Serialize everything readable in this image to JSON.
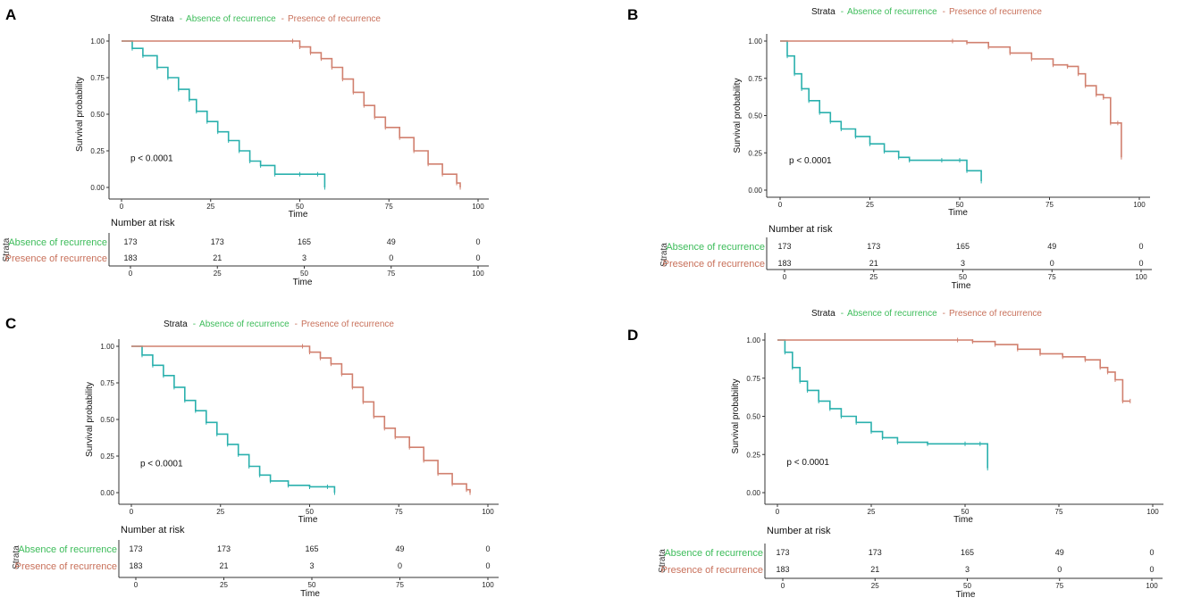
{
  "colors": {
    "absence": "#2ab0ad",
    "presence": "#d1806f",
    "absence_text": "#3dbc5a",
    "presence_text": "#c8705a",
    "axis": "#333333"
  },
  "legend": {
    "title": "Strata",
    "absence": "Absence of recurrence",
    "presence": "Presence of recurrence"
  },
  "risk_table": {
    "title": "Number at risk",
    "strata_label": "Strata",
    "rows": [
      {
        "label": "Absence of recurrence",
        "counts": [
          "173",
          "173",
          "165",
          "49",
          "0"
        ]
      },
      {
        "label": "Presence of recurrence",
        "counts": [
          "183",
          "21",
          "3",
          "0",
          "0"
        ]
      }
    ],
    "time_ticks": [
      "0",
      "25",
      "50",
      "75",
      "100"
    ],
    "xlabel": "Time"
  },
  "chart_data": [
    {
      "panel": "A",
      "type": "line",
      "title": "",
      "xlabel": "Time",
      "ylabel": "Survival probability",
      "xlim": [
        0,
        100
      ],
      "ylim": [
        0,
        1
      ],
      "x_ticks": [
        "0",
        "25",
        "50",
        "75",
        "100"
      ],
      "y_ticks": [
        "0.00",
        "0.25",
        "0.50",
        "0.75",
        "1.00"
      ],
      "annotation": "p < 0.0001",
      "series": [
        {
          "name": "Absence of recurrence",
          "points": [
            [
              0,
              1.0
            ],
            [
              3,
              0.95
            ],
            [
              6,
              0.9
            ],
            [
              10,
              0.82
            ],
            [
              13,
              0.75
            ],
            [
              16,
              0.67
            ],
            [
              19,
              0.6
            ],
            [
              21,
              0.52
            ],
            [
              24,
              0.45
            ],
            [
              27,
              0.38
            ],
            [
              30,
              0.32
            ],
            [
              33,
              0.25
            ],
            [
              36,
              0.18
            ],
            [
              39,
              0.15
            ],
            [
              43,
              0.09
            ],
            [
              50,
              0.09
            ],
            [
              55,
              0.09
            ],
            [
              57,
              0.0
            ]
          ]
        },
        {
          "name": "Presence of recurrence",
          "points": [
            [
              0,
              1.0
            ],
            [
              48,
              1.0
            ],
            [
              50,
              0.96
            ],
            [
              53,
              0.92
            ],
            [
              56,
              0.88
            ],
            [
              59,
              0.82
            ],
            [
              62,
              0.74
            ],
            [
              65,
              0.65
            ],
            [
              68,
              0.56
            ],
            [
              71,
              0.48
            ],
            [
              74,
              0.41
            ],
            [
              78,
              0.34
            ],
            [
              82,
              0.25
            ],
            [
              86,
              0.16
            ],
            [
              90,
              0.09
            ],
            [
              94,
              0.03
            ],
            [
              95,
              0.0
            ]
          ]
        }
      ]
    },
    {
      "panel": "B",
      "type": "line",
      "title": "",
      "xlabel": "Time",
      "ylabel": "Survival probability",
      "xlim": [
        0,
        100
      ],
      "ylim": [
        0,
        1
      ],
      "x_ticks": [
        "0",
        "25",
        "50",
        "75",
        "100"
      ],
      "y_ticks": [
        "0.00",
        "0.25",
        "0.50",
        "0.75",
        "1.00"
      ],
      "annotation": "p < 0.0001",
      "series": [
        {
          "name": "Absence of recurrence",
          "points": [
            [
              0,
              1.0
            ],
            [
              2,
              0.9
            ],
            [
              4,
              0.78
            ],
            [
              6,
              0.68
            ],
            [
              8,
              0.6
            ],
            [
              11,
              0.52
            ],
            [
              14,
              0.46
            ],
            [
              17,
              0.41
            ],
            [
              21,
              0.36
            ],
            [
              25,
              0.31
            ],
            [
              29,
              0.26
            ],
            [
              33,
              0.22
            ],
            [
              36,
              0.2
            ],
            [
              45,
              0.2
            ],
            [
              50,
              0.2
            ],
            [
              52,
              0.13
            ],
            [
              56,
              0.06
            ]
          ]
        },
        {
          "name": "Presence of recurrence",
          "points": [
            [
              0,
              1.0
            ],
            [
              48,
              1.0
            ],
            [
              52,
              0.99
            ],
            [
              58,
              0.96
            ],
            [
              64,
              0.92
            ],
            [
              70,
              0.88
            ],
            [
              76,
              0.84
            ],
            [
              80,
              0.83
            ],
            [
              83,
              0.78
            ],
            [
              85,
              0.7
            ],
            [
              88,
              0.64
            ],
            [
              90,
              0.62
            ],
            [
              92,
              0.45
            ],
            [
              94,
              0.45
            ],
            [
              95,
              0.22
            ]
          ]
        }
      ]
    },
    {
      "panel": "C",
      "type": "line",
      "title": "",
      "xlabel": "Time",
      "ylabel": "Survival probability",
      "xlim": [
        0,
        100
      ],
      "ylim": [
        0,
        1
      ],
      "x_ticks": [
        "0",
        "25",
        "50",
        "75",
        "100"
      ],
      "y_ticks": [
        "0.00",
        "0.25",
        "0.50",
        "0.75",
        "1.00"
      ],
      "annotation": "p < 0.0001",
      "series": [
        {
          "name": "Absence of recurrence",
          "points": [
            [
              0,
              1.0
            ],
            [
              3,
              0.94
            ],
            [
              6,
              0.87
            ],
            [
              9,
              0.8
            ],
            [
              12,
              0.72
            ],
            [
              15,
              0.63
            ],
            [
              18,
              0.56
            ],
            [
              21,
              0.48
            ],
            [
              24,
              0.4
            ],
            [
              27,
              0.33
            ],
            [
              30,
              0.26
            ],
            [
              33,
              0.18
            ],
            [
              36,
              0.12
            ],
            [
              39,
              0.08
            ],
            [
              44,
              0.05
            ],
            [
              50,
              0.04
            ],
            [
              55,
              0.04
            ],
            [
              57,
              0.0
            ]
          ]
        },
        {
          "name": "Presence of recurrence",
          "points": [
            [
              0,
              1.0
            ],
            [
              48,
              1.0
            ],
            [
              50,
              0.96
            ],
            [
              53,
              0.92
            ],
            [
              56,
              0.88
            ],
            [
              59,
              0.81
            ],
            [
              62,
              0.72
            ],
            [
              65,
              0.62
            ],
            [
              68,
              0.52
            ],
            [
              71,
              0.44
            ],
            [
              74,
              0.38
            ],
            [
              78,
              0.31
            ],
            [
              82,
              0.22
            ],
            [
              86,
              0.13
            ],
            [
              90,
              0.06
            ],
            [
              94,
              0.02
            ],
            [
              95,
              0.0
            ]
          ]
        }
      ]
    },
    {
      "panel": "D",
      "type": "line",
      "title": "",
      "xlabel": "Time",
      "ylabel": "Survival probability",
      "xlim": [
        0,
        100
      ],
      "ylim": [
        0,
        1
      ],
      "x_ticks": [
        "0",
        "25",
        "50",
        "75",
        "100"
      ],
      "y_ticks": [
        "0.00",
        "0.25",
        "0.50",
        "0.75",
        "1.00"
      ],
      "annotation": "p < 0.0001",
      "series": [
        {
          "name": "Absence of recurrence",
          "points": [
            [
              0,
              1.0
            ],
            [
              2,
              0.92
            ],
            [
              4,
              0.82
            ],
            [
              6,
              0.73
            ],
            [
              8,
              0.67
            ],
            [
              11,
              0.6
            ],
            [
              14,
              0.55
            ],
            [
              17,
              0.5
            ],
            [
              21,
              0.46
            ],
            [
              25,
              0.4
            ],
            [
              28,
              0.36
            ],
            [
              32,
              0.33
            ],
            [
              40,
              0.32
            ],
            [
              50,
              0.32
            ],
            [
              54,
              0.32
            ],
            [
              56,
              0.16
            ]
          ]
        },
        {
          "name": "Presence of recurrence",
          "points": [
            [
              0,
              1.0
            ],
            [
              48,
              1.0
            ],
            [
              52,
              0.99
            ],
            [
              58,
              0.97
            ],
            [
              64,
              0.94
            ],
            [
              70,
              0.91
            ],
            [
              76,
              0.89
            ],
            [
              82,
              0.87
            ],
            [
              86,
              0.82
            ],
            [
              88,
              0.79
            ],
            [
              90,
              0.74
            ],
            [
              92,
              0.6
            ],
            [
              94,
              0.6
            ]
          ]
        }
      ]
    }
  ]
}
